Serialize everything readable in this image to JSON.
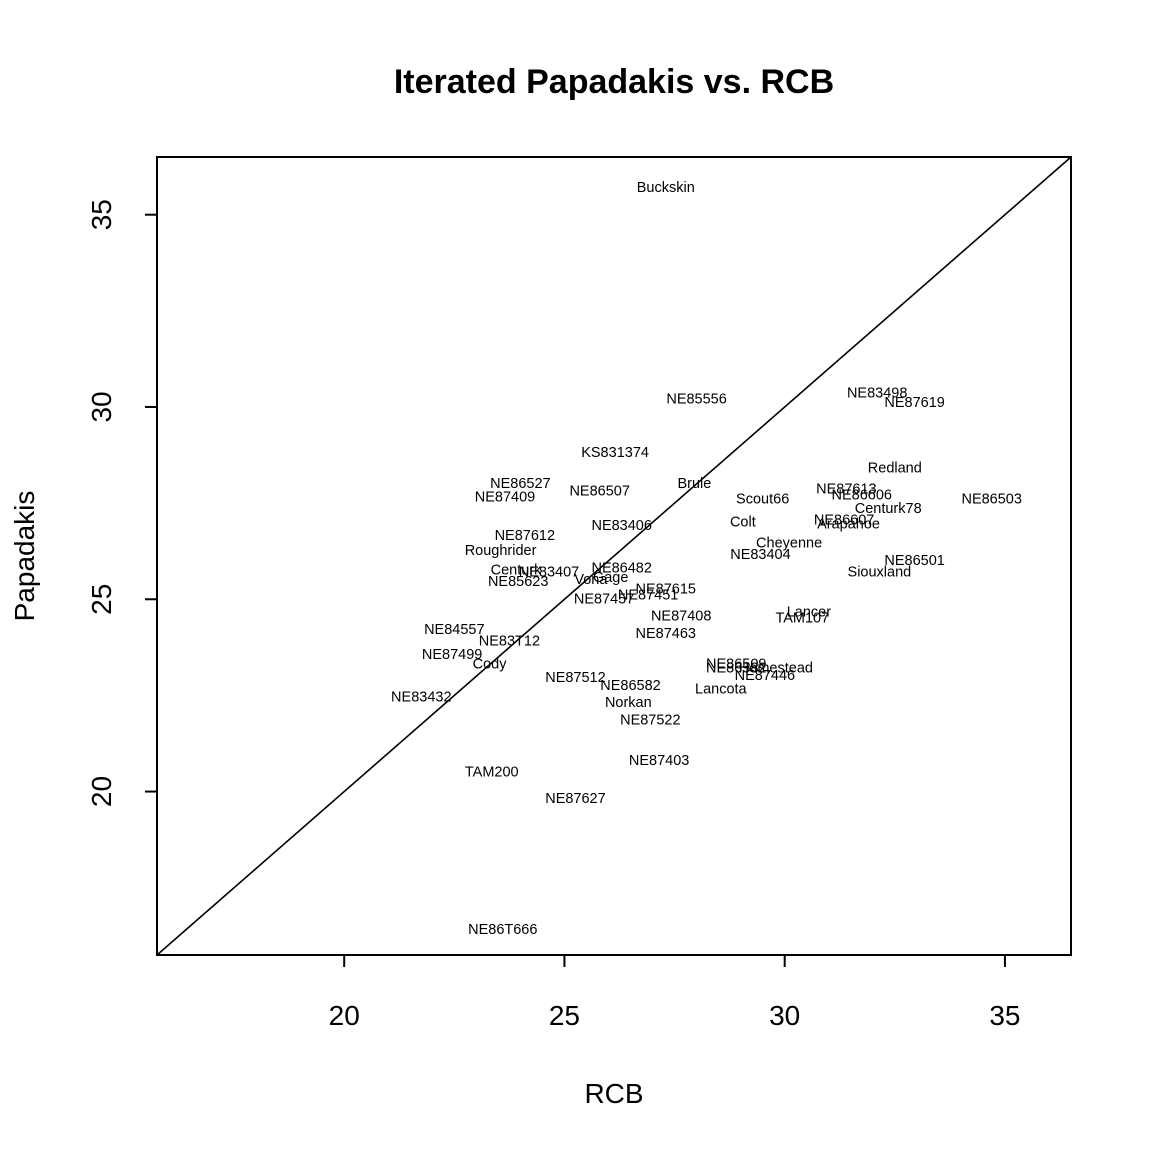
{
  "chart_data": {
    "type": "scatter",
    "title": "Iterated Papadakis vs. RCB",
    "xlabel": "RCB",
    "ylabel": "Papadakis",
    "xlim": [
      15.75,
      36.5
    ],
    "ylim": [
      15.75,
      36.5
    ],
    "xticks": [
      20,
      25,
      30,
      35
    ],
    "yticks": [
      20,
      25,
      30,
      35
    ],
    "grid": false,
    "reference_line": "y = x",
    "points": [
      {
        "label": "Buckskin",
        "x": 27.3,
        "y": 35.7
      },
      {
        "label": "NE85556",
        "x": 28.0,
        "y": 30.2
      },
      {
        "label": "NE83498",
        "x": 32.1,
        "y": 30.35
      },
      {
        "label": "NE87619",
        "x": 32.95,
        "y": 30.1
      },
      {
        "label": "KS831374",
        "x": 26.15,
        "y": 28.8
      },
      {
        "label": "Redland",
        "x": 32.5,
        "y": 28.4
      },
      {
        "label": "NE86527",
        "x": 24.0,
        "y": 28.0
      },
      {
        "label": "Brule",
        "x": 27.95,
        "y": 28.0
      },
      {
        "label": "NE86507",
        "x": 25.8,
        "y": 27.8
      },
      {
        "label": "NE87613",
        "x": 31.4,
        "y": 27.85
      },
      {
        "label": "NE86606",
        "x": 31.75,
        "y": 27.7
      },
      {
        "label": "NE87409",
        "x": 23.65,
        "y": 27.65
      },
      {
        "label": "Scout66",
        "x": 29.5,
        "y": 27.6
      },
      {
        "label": "NE86503",
        "x": 34.7,
        "y": 27.6
      },
      {
        "label": "Centurk78",
        "x": 32.35,
        "y": 27.35
      },
      {
        "label": "Colt",
        "x": 29.05,
        "y": 27.0
      },
      {
        "label": "NE86607",
        "x": 31.35,
        "y": 27.05
      },
      {
        "label": "Arapahoe",
        "x": 31.45,
        "y": 26.95
      },
      {
        "label": "NE83406",
        "x": 26.3,
        "y": 26.9
      },
      {
        "label": "NE87612",
        "x": 24.1,
        "y": 26.65
      },
      {
        "label": "Cheyenne",
        "x": 30.1,
        "y": 26.45
      },
      {
        "label": "Roughrider",
        "x": 23.55,
        "y": 26.25
      },
      {
        "label": "NE83404",
        "x": 29.45,
        "y": 26.15
      },
      {
        "label": "NE86501",
        "x": 32.95,
        "y": 26.0
      },
      {
        "label": "NE86482",
        "x": 26.3,
        "y": 25.8
      },
      {
        "label": "Centurk",
        "x": 23.9,
        "y": 25.75
      },
      {
        "label": "NE83407",
        "x": 24.65,
        "y": 25.7
      },
      {
        "label": "Siouxland",
        "x": 32.15,
        "y": 25.7
      },
      {
        "label": "Vona",
        "x": 25.6,
        "y": 25.5
      },
      {
        "label": "Gage",
        "x": 26.05,
        "y": 25.55
      },
      {
        "label": "NE85623",
        "x": 23.95,
        "y": 25.45
      },
      {
        "label": "NE87615",
        "x": 27.3,
        "y": 25.25
      },
      {
        "label": "NE87451",
        "x": 26.9,
        "y": 25.1
      },
      {
        "label": "NE87457",
        "x": 25.9,
        "y": 25.0
      },
      {
        "label": "NE87408",
        "x": 27.65,
        "y": 24.55
      },
      {
        "label": "Lancer",
        "x": 30.55,
        "y": 24.65
      },
      {
        "label": "TAM107",
        "x": 30.4,
        "y": 24.5
      },
      {
        "label": "NE84557",
        "x": 22.5,
        "y": 24.2
      },
      {
        "label": "NE87463",
        "x": 27.3,
        "y": 24.1
      },
      {
        "label": "NE83T12",
        "x": 23.75,
        "y": 23.9
      },
      {
        "label": "NE87499",
        "x": 22.45,
        "y": 23.55
      },
      {
        "label": "Cody",
        "x": 23.3,
        "y": 23.3
      },
      {
        "label": "NE86509",
        "x": 28.9,
        "y": 23.3
      },
      {
        "label": "Homestead",
        "x": 29.8,
        "y": 23.2
      },
      {
        "label": "NE86582",
        "x": 28.9,
        "y": 23.2
      },
      {
        "label": "NE87446",
        "x": 29.55,
        "y": 23.0
      },
      {
        "label": "NE87512",
        "x": 25.25,
        "y": 22.95
      },
      {
        "label": "NE86582",
        "x": 26.5,
        "y": 22.75
      },
      {
        "label": "Lancota",
        "x": 28.55,
        "y": 22.65
      },
      {
        "label": "NE83432",
        "x": 21.75,
        "y": 22.45
      },
      {
        "label": "Norkan",
        "x": 26.45,
        "y": 22.3
      },
      {
        "label": "NE87522",
        "x": 26.95,
        "y": 21.85
      },
      {
        "label": "NE87403",
        "x": 27.15,
        "y": 20.8
      },
      {
        "label": "TAM200",
        "x": 23.35,
        "y": 20.5
      },
      {
        "label": "NE87627",
        "x": 25.25,
        "y": 19.8
      },
      {
        "label": "NE86T666",
        "x": 23.6,
        "y": 16.4
      }
    ]
  }
}
